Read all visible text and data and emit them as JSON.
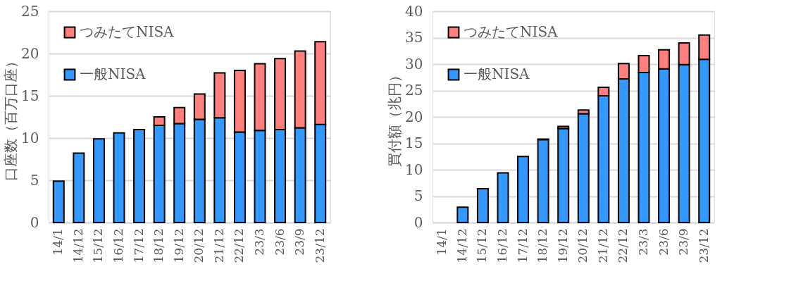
{
  "chart_data": [
    {
      "type": "bar",
      "stacked": true,
      "ylabel": "口座数（百万口座）",
      "categories": [
        "14/1",
        "14/12",
        "15/12",
        "16/12",
        "17/12",
        "18/12",
        "19/12",
        "20/12",
        "21/12",
        "22/12",
        "23/3",
        "23/6",
        "23/9",
        "23/12"
      ],
      "series": [
        {
          "name": "一般NISA",
          "color": "#3399ff",
          "values": [
            4.9,
            8.2,
            9.9,
            10.6,
            11.0,
            11.5,
            11.7,
            12.2,
            12.4,
            10.7,
            10.9,
            11.0,
            11.2,
            11.6
          ]
        },
        {
          "name": "つみたてNISA",
          "color": "#ff7f7f",
          "values": [
            null,
            null,
            null,
            null,
            null,
            1.0,
            1.9,
            3.0,
            5.3,
            7.3,
            7.9,
            8.4,
            9.1,
            9.8
          ]
        }
      ],
      "ylim": [
        0,
        25
      ],
      "yticks": [
        0,
        5,
        10,
        15,
        20,
        25
      ],
      "grid": "y",
      "legend": "top left"
    },
    {
      "type": "bar",
      "stacked": true,
      "ylabel": "買付額（兆円）",
      "categories": [
        "14/1",
        "14/12",
        "15/12",
        "16/12",
        "17/12",
        "18/12",
        "19/12",
        "20/12",
        "21/12",
        "22/12",
        "23/3",
        "23/6",
        "23/9",
        "23/12"
      ],
      "series": [
        {
          "name": "一般NISA",
          "color": "#3399ff",
          "values": [
            null,
            2.9,
            6.4,
            9.4,
            12.5,
            15.7,
            17.8,
            20.6,
            24.0,
            27.2,
            28.4,
            29.1,
            29.9,
            30.9
          ]
        },
        {
          "name": "つみたてNISA",
          "color": "#ff7f7f",
          "values": [
            null,
            null,
            null,
            null,
            null,
            0.1,
            0.4,
            0.7,
            1.6,
            2.9,
            3.2,
            3.6,
            4.1,
            4.6
          ]
        }
      ],
      "ylim": [
        0,
        40
      ],
      "yticks": [
        0,
        5,
        10,
        15,
        20,
        25,
        30,
        35,
        40
      ],
      "grid": "y",
      "legend": "top left"
    }
  ]
}
